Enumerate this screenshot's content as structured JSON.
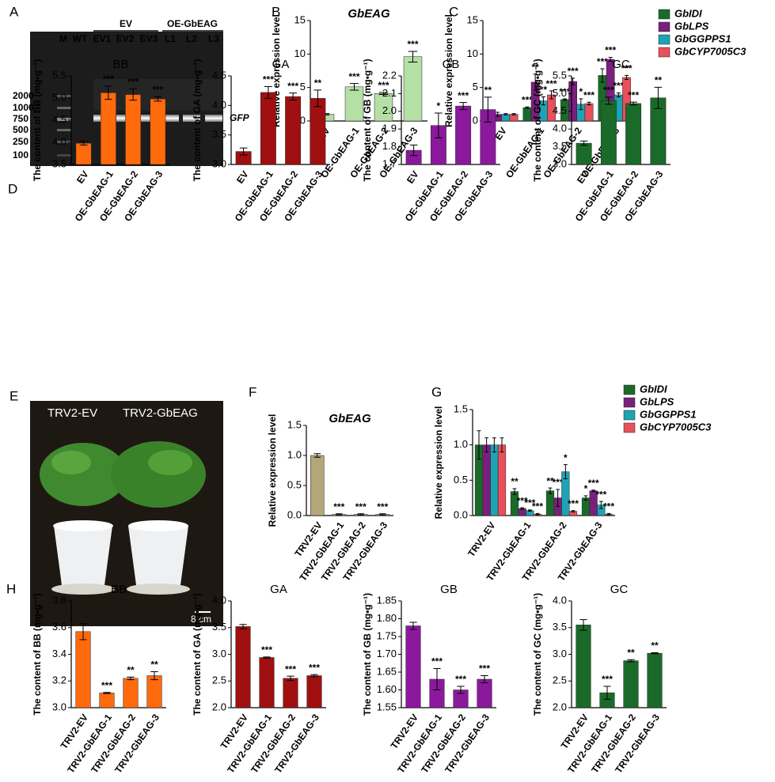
{
  "panel_letters": [
    "A",
    "B",
    "C",
    "D",
    "E",
    "F",
    "G",
    "H"
  ],
  "gel": {
    "lanes": [
      "M",
      "WT",
      "EV1",
      "EV2",
      "EV3",
      "L1",
      "L2",
      "L3"
    ],
    "groups": [
      "EV",
      "OE-GbEAG"
    ],
    "markers": [
      "2000",
      "1000",
      "750",
      "500",
      "250",
      "100"
    ],
    "band": "GFP"
  },
  "photo": {
    "labels": [
      "TRV2-EV",
      "TRV2-GbEAG"
    ],
    "scale": "8 cm"
  },
  "chart_data": [
    {
      "type": "bar",
      "title": "GbEAG",
      "y_label": "Relative expression level",
      "categories": [
        "EV",
        "OE-GbEAG-1",
        "OE-GbEAG-2",
        "OE-GbEAG-3"
      ],
      "values": [
        1.0,
        5.1,
        4.1,
        9.6
      ],
      "errors": [
        0.1,
        0.5,
        0.15,
        0.8
      ],
      "significance": [
        null,
        "***",
        "***",
        "***"
      ],
      "color": "#b5e0a5",
      "ylim": [
        0,
        15
      ],
      "yticks": [
        0,
        5,
        10,
        15
      ]
    },
    {
      "type": "grouped_bar",
      "y_label": "Relative expression level",
      "categories": [
        "EV",
        "OE-GbEAG-1",
        "OE-GbEAG-2",
        "OE-GbEAG-3"
      ],
      "ylim": [
        0,
        15
      ],
      "yticks": [
        0,
        5,
        10,
        15
      ],
      "series": [
        {
          "name": "GbIDI",
          "color": "#1a6b2a",
          "values": [
            1.0,
            2.0,
            3.2,
            6.8
          ],
          "errors": [
            0.1,
            0.1,
            0.1,
            1.0
          ],
          "significance": [
            null,
            "***",
            "***",
            "***"
          ]
        },
        {
          "name": "GbLPS",
          "color": "#7b1f7e",
          "values": [
            1.0,
            5.8,
            5.9,
            9.2
          ],
          "errors": [
            0.3,
            1.2,
            0.5,
            0.3
          ],
          "significance": [
            null,
            "**",
            "***",
            "***"
          ]
        },
        {
          "name": "GbGGPPS1",
          "color": "#1ea3b5",
          "values": [
            1.0,
            3.0,
            2.5,
            3.9
          ],
          "errors": [
            0.1,
            0.6,
            0.8,
            0.3
          ],
          "significance": [
            null,
            "**",
            "*",
            "***"
          ]
        },
        {
          "name": "GbCYP7005C3",
          "color": "#e8505b",
          "values": [
            1.0,
            3.9,
            2.6,
            6.5
          ],
          "errors": [
            0.1,
            0.6,
            0.2,
            0.3
          ],
          "significance": [
            null,
            "***",
            "***",
            "***"
          ]
        }
      ]
    },
    {
      "type": "bar",
      "title": "BB",
      "y_label": "The content of BB  (mg•g⁻¹)",
      "categories": [
        "EV",
        "OE-GbEAG-1",
        "OE-GbEAG-2",
        "OE-GbEAG-3"
      ],
      "values": [
        3.98,
        5.12,
        5.08,
        4.98
      ],
      "errors": [
        0.04,
        0.15,
        0.13,
        0.05
      ],
      "significance": [
        null,
        "***",
        "***",
        "***"
      ],
      "color": "#ff6a0d",
      "ylim": [
        3.5,
        5.5
      ],
      "yticks": [
        3.5,
        {
          "value": 4,
          "label": "4.0"
        },
        4.5,
        {
          "value": 5,
          "label": "5.0"
        },
        5.5
      ]
    },
    {
      "type": "bar",
      "title": "GA",
      "y_label": "The content of GA  (mg•g⁻¹)",
      "categories": [
        "EV",
        "OE-GbEAG-1",
        "OE-GbEAG-2",
        "OE-GbEAG-3"
      ],
      "values": [
        3.22,
        4.22,
        4.15,
        4.12
      ],
      "errors": [
        0.06,
        0.1,
        0.06,
        0.14
      ],
      "significance": [
        null,
        "***",
        "***",
        "**"
      ],
      "color": "#a01010",
      "ylim": [
        3,
        4.5
      ],
      "yticks": [
        {
          "value": 3,
          "label": "3.0"
        },
        3.5,
        {
          "value": 4,
          "label": "4.0"
        },
        4.5
      ]
    },
    {
      "type": "bar",
      "title": "GB",
      "y_label": "The content of GB  (mg•g⁻¹)",
      "categories": [
        "EV",
        "OE-GbEAG-1",
        "OE-GbEAG-2",
        "OE-GbEAG-3"
      ],
      "values": [
        1.78,
        1.92,
        2.03,
        2.01
      ],
      "errors": [
        0.03,
        0.07,
        0.02,
        0.07
      ],
      "significance": [
        null,
        "*",
        "***",
        "**"
      ],
      "color": "#8a1a9b",
      "ylim": [
        1.7,
        2.2
      ],
      "yticks": [
        1.7,
        1.8,
        1.9,
        {
          "value": 2,
          "label": "2.0"
        },
        2.1,
        2.2
      ]
    },
    {
      "type": "bar",
      "title": "GC",
      "y_label": "The content of GC  (mg•g⁻¹)",
      "categories": [
        "EV",
        "OE-GbEAG-1",
        "OE-GbEAG-2",
        "OE-GbEAG-3"
      ],
      "values": [
        3.6,
        4.8,
        4.72,
        4.88
      ],
      "errors": [
        0.06,
        0.1,
        0.04,
        0.3
      ],
      "significance": [
        null,
        "***",
        "***",
        "**"
      ],
      "color": "#1a6b2a",
      "ylim": [
        3,
        5.5
      ],
      "yticks": [
        {
          "value": 3,
          "label": "3.0"
        },
        3.5,
        {
          "value": 4,
          "label": "4.0"
        },
        4.5,
        {
          "value": 5,
          "label": "5.0"
        },
        5.5
      ]
    },
    {
      "type": "bar",
      "title": "GbEAG",
      "y_label": "Relative expression level",
      "categories": [
        "TRV2-EV",
        "TRV2-GbEAG-1",
        "TRV2-GbEAG-2",
        "TRV2-GbEAG-3"
      ],
      "values": [
        1.0,
        0.02,
        0.02,
        0.02
      ],
      "errors": [
        0.03,
        0.01,
        0.01,
        0.01
      ],
      "significance": [
        null,
        "***",
        "***",
        "***"
      ],
      "color": "#b3a779",
      "ylim": [
        0,
        1.5
      ],
      "yticks": [
        {
          "value": 0,
          "label": "0.0"
        },
        0.5,
        {
          "value": 1,
          "label": "1.0"
        },
        1.5
      ]
    },
    {
      "type": "grouped_bar",
      "y_label": "Relative expression level",
      "categories": [
        "TRV2-EV",
        "TRV2-GbEAG-1",
        "TRV2-GbEAG-2",
        "TRV2-GbEAG-3"
      ],
      "ylim": [
        0,
        1.5
      ],
      "yticks": [
        {
          "value": 0,
          "label": "0.0"
        },
        0.5,
        {
          "value": 1,
          "label": "1.0"
        },
        1.5
      ],
      "series": [
        {
          "name": "GbIDI",
          "color": "#1a6b2a",
          "values": [
            1.0,
            0.34,
            0.35,
            0.25
          ],
          "errors": [
            0.2,
            0.04,
            0.04,
            0.03
          ],
          "significance": [
            null,
            "**",
            "**",
            "*"
          ]
        },
        {
          "name": "GbLPS",
          "color": "#7b1f7e",
          "values": [
            1.0,
            0.1,
            0.25,
            0.35
          ],
          "errors": [
            0.1,
            0.01,
            0.12,
            0.01
          ],
          "significance": [
            null,
            "***",
            "***",
            "***"
          ]
        },
        {
          "name": "GbGGPPS1",
          "color": "#1ea3b5",
          "values": [
            1.0,
            0.07,
            0.62,
            0.15
          ],
          "errors": [
            0.1,
            0.01,
            0.1,
            0.05
          ],
          "significance": [
            null,
            "***",
            "*",
            "***"
          ]
        },
        {
          "name": "GbCYP7005C3",
          "color": "#e8505b",
          "values": [
            1.0,
            0.02,
            0.06,
            0.02
          ],
          "errors": [
            0.1,
            0.01,
            0.01,
            0.01
          ],
          "significance": [
            null,
            "***",
            "***",
            "***"
          ]
        }
      ]
    },
    {
      "type": "bar",
      "title": "BB",
      "y_label": "The content of BB  (mg•g⁻¹)",
      "categories": [
        "TRV2-EV",
        "TRV2-GbEAG-1",
        "TRV2-GbEAG-2",
        "TRV2-GbEAG-3"
      ],
      "values": [
        3.57,
        3.11,
        3.22,
        3.24
      ],
      "errors": [
        0.06,
        0.005,
        0.01,
        0.03
      ],
      "significance": [
        null,
        "***",
        "**",
        "**"
      ],
      "color": "#ff6a0d",
      "ylim": [
        3,
        3.8
      ],
      "yticks": [
        {
          "value": 3,
          "label": "3.0"
        },
        3.2,
        3.4,
        3.6,
        3.8
      ]
    },
    {
      "type": "bar",
      "title": "GA",
      "y_label": "The content of GA  (mg•g⁻¹)",
      "categories": [
        "TRV2-EV",
        "TRV2-GbEAG-1",
        "TRV2-GbEAG-2",
        "TRV2-GbEAG-3"
      ],
      "values": [
        3.52,
        2.94,
        2.55,
        2.6
      ],
      "errors": [
        0.04,
        0.01,
        0.04,
        0.02
      ],
      "significance": [
        null,
        "***",
        "***",
        "***"
      ],
      "color": "#a01010",
      "ylim": [
        2,
        4
      ],
      "yticks": [
        {
          "value": 2,
          "label": "2.0"
        },
        2.5,
        {
          "value": 3,
          "label": "3.0"
        },
        3.5,
        {
          "value": 4,
          "label": "4.0"
        }
      ]
    },
    {
      "type": "bar",
      "title": "GB",
      "y_label": "The content of GB  (mg•g⁻¹)",
      "categories": [
        "TRV2-EV",
        "TRV2-GbEAG-1",
        "TRV2-GbEAG-2",
        "TRV2-GbEAG-3"
      ],
      "values": [
        1.78,
        1.63,
        1.6,
        1.63
      ],
      "errors": [
        0.01,
        0.03,
        0.01,
        0.01
      ],
      "significance": [
        null,
        "***",
        "***",
        "***"
      ],
      "color": "#8a1a9b",
      "ylim": [
        1.55,
        1.85
      ],
      "yticks": [
        1.55,
        {
          "value": 1.6,
          "label": "1.60"
        },
        1.65,
        {
          "value": 1.7,
          "label": "1.70"
        },
        1.75,
        {
          "value": 1.8,
          "label": "1.80"
        },
        1.85
      ]
    },
    {
      "type": "bar",
      "title": "GC",
      "y_label": "The content of GC  (mg•g⁻¹)",
      "categories": [
        "TRV2-EV",
        "TRV2-GbEAG-1",
        "TRV2-GbEAG-2",
        "TRV2-GbEAG-3"
      ],
      "values": [
        3.55,
        2.28,
        2.88,
        3.02
      ],
      "errors": [
        0.1,
        0.12,
        0.02,
        0.01
      ],
      "significance": [
        null,
        "***",
        "**",
        "**"
      ],
      "color": "#1a6b2a",
      "ylim": [
        2,
        4
      ],
      "yticks": [
        {
          "value": 2,
          "label": "2.0"
        },
        2.5,
        {
          "value": 3,
          "label": "3.0"
        },
        3.5,
        {
          "value": 4,
          "label": "4.0"
        }
      ]
    }
  ]
}
